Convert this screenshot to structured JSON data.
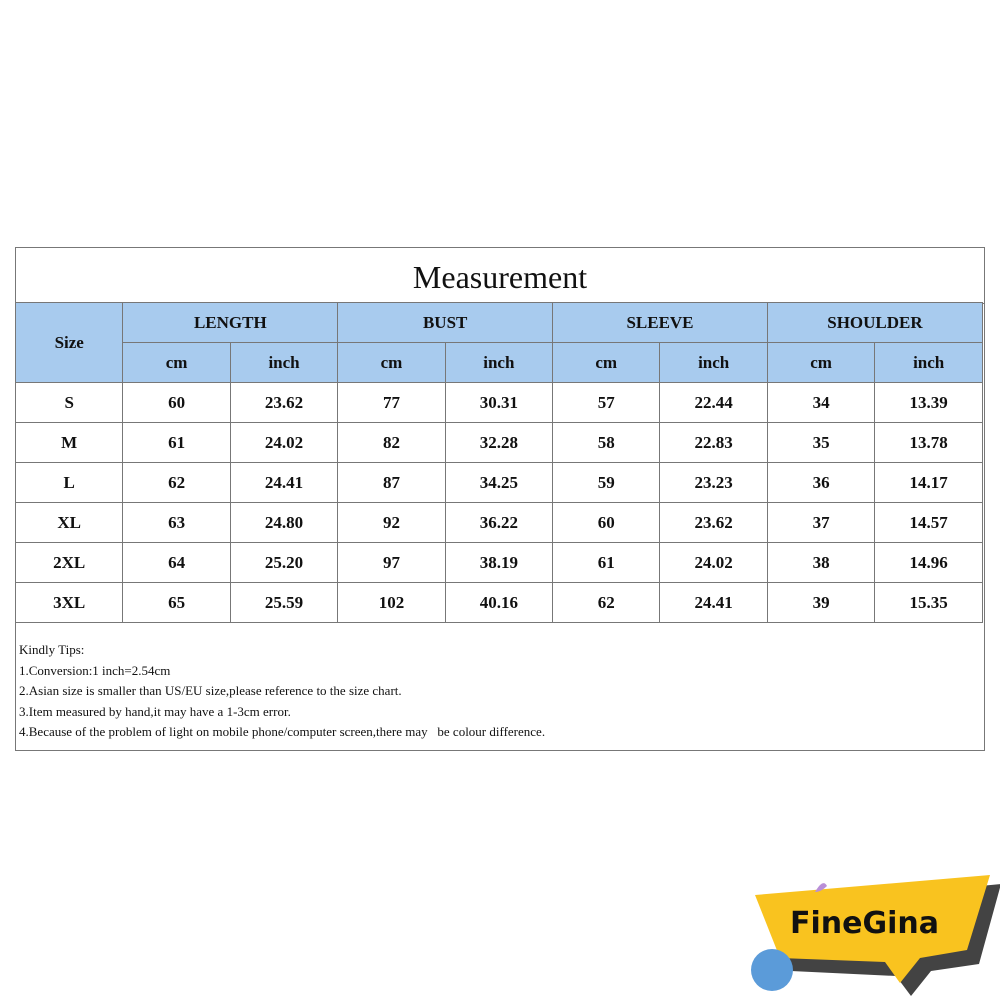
{
  "title": "Measurement",
  "headers": {
    "size": "Size",
    "groups": [
      "LENGTH",
      "BUST",
      "SLEEVE",
      "SHOULDER"
    ],
    "units": [
      "cm",
      "inch",
      "cm",
      "inch",
      "cm",
      "inch",
      "cm",
      "inch"
    ]
  },
  "rows": [
    [
      "S",
      "60",
      "23.62",
      "77",
      "30.31",
      "57",
      "22.44",
      "34",
      "13.39"
    ],
    [
      "M",
      "61",
      "24.02",
      "82",
      "32.28",
      "58",
      "22.83",
      "35",
      "13.78"
    ],
    [
      "L",
      "62",
      "24.41",
      "87",
      "34.25",
      "59",
      "23.23",
      "36",
      "14.17"
    ],
    [
      "XL",
      "63",
      "24.80",
      "92",
      "36.22",
      "60",
      "23.62",
      "37",
      "14.57"
    ],
    [
      "2XL",
      "64",
      "25.20",
      "97",
      "38.19",
      "61",
      "24.02",
      "38",
      "14.96"
    ],
    [
      "3XL",
      "65",
      "25.59",
      "102",
      "40.16",
      "62",
      "24.41",
      "39",
      "15.35"
    ]
  ],
  "tips": [
    "Kindly Tips:",
    "1.Conversion:1 inch=2.54cm",
    "2.Asian size is smaller than US/EU size,please reference to the size chart.",
    "3.Item measured by hand,it may have a 1-3cm error.",
    "4.Because of the problem of light on mobile phone/computer screen,there may   be colour difference."
  ],
  "logo": {
    "text": "FineGina",
    "banner_color": "#f9c31f",
    "dot_color": "#5b9bd9"
  },
  "header_color": "#a8cbee"
}
